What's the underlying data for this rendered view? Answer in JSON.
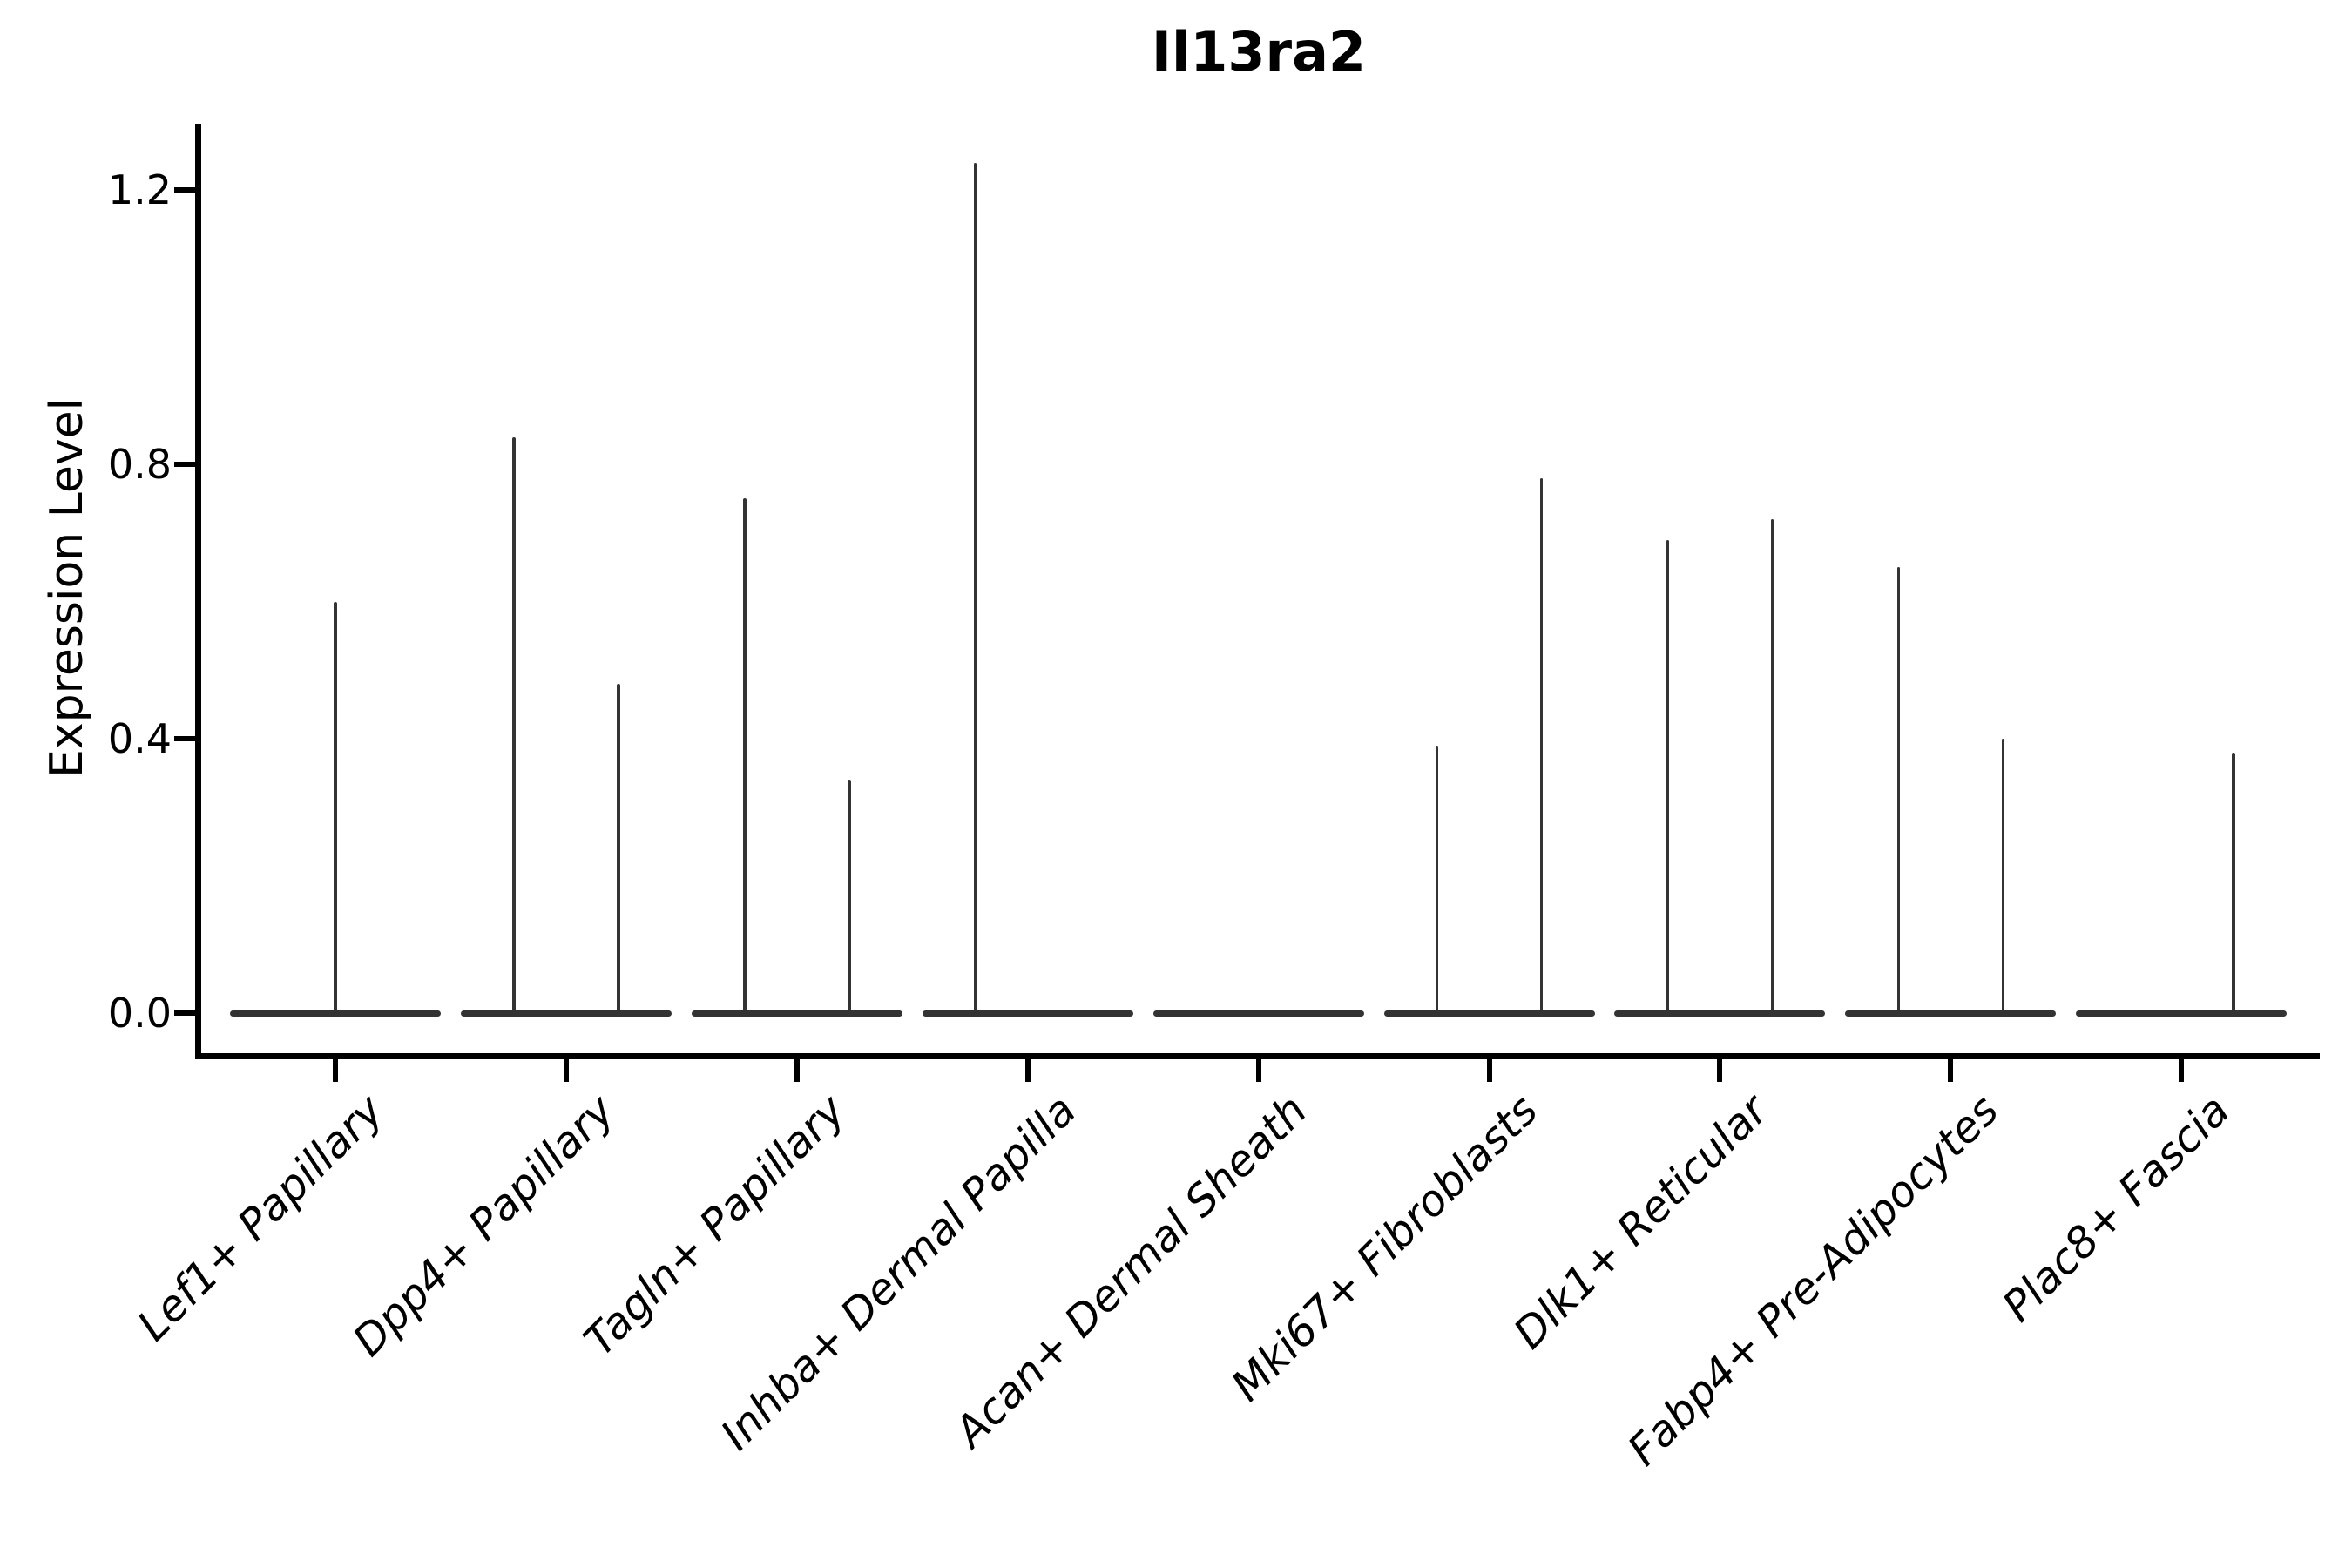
{
  "chart_data": {
    "type": "violin",
    "title": "Il13ra2",
    "xlabel": "",
    "ylabel": "Expression Level",
    "yticks": [
      0.0,
      0.4,
      0.8,
      1.2
    ],
    "ytick_labels": [
      "0.0",
      "0.4",
      "0.8",
      "1.2"
    ],
    "ylim": [
      -0.06,
      1.3
    ],
    "grid": false,
    "legend_position": "none",
    "categories": [
      "Lef1+ Papillary",
      "Dpp4+ Papillary",
      "Tagln+ Papillary",
      "Inhba+ Dermal Papilla",
      "Acan+ Dermal Sheath",
      "Mki67+ Fibroblasts",
      "Dlk1+ Reticular",
      "Fabp4+ Pre-Adipocytes",
      "Plac8+ Fascia"
    ],
    "violins": [
      {
        "spikes": [
          {
            "pos": "center",
            "max": 0.6
          }
        ]
      },
      {
        "spikes": [
          {
            "pos": "left",
            "max": 0.84
          },
          {
            "pos": "right",
            "max": 0.48
          }
        ]
      },
      {
        "spikes": [
          {
            "pos": "left",
            "max": 0.75
          },
          {
            "pos": "right",
            "max": 0.34
          }
        ]
      },
      {
        "spikes": [
          {
            "pos": "left",
            "max": 1.24
          }
        ]
      },
      {
        "spikes": []
      },
      {
        "spikes": [
          {
            "pos": "left",
            "max": 0.39
          },
          {
            "pos": "right",
            "max": 0.78
          }
        ]
      },
      {
        "spikes": [
          {
            "pos": "left",
            "max": 0.69
          },
          {
            "pos": "right",
            "max": 0.72
          }
        ]
      },
      {
        "spikes": [
          {
            "pos": "left",
            "max": 0.65
          },
          {
            "pos": "right",
            "max": 0.4
          }
        ]
      },
      {
        "spikes": [
          {
            "pos": "right",
            "max": 0.38
          }
        ]
      }
    ],
    "colors": {
      "axis": "#000000",
      "violin": "#333333",
      "background": "#ffffff"
    }
  }
}
